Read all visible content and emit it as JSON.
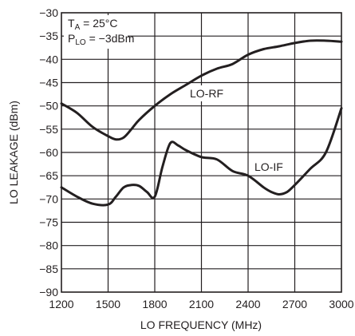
{
  "chart_data": {
    "type": "line",
    "xlabel": "LO FREQUENCY (MHz)",
    "ylabel": "LO LEAKAGE (dBm)",
    "xlim": [
      1200,
      3000
    ],
    "ylim": [
      -90,
      -30
    ],
    "x_ticks": [
      "1200",
      "1500",
      "1800",
      "2100",
      "2400",
      "2700",
      "3000"
    ],
    "y_ticks": [
      "−30",
      "−35",
      "−40",
      "−45",
      "−50",
      "−55",
      "−60",
      "−65",
      "−70",
      "−75",
      "−80",
      "−85",
      "−90"
    ],
    "grid": true,
    "annotations": {
      "ta_main": "T",
      "ta_sub": "A",
      "ta_rest": " = 25°C",
      "plo_main": "P",
      "plo_sub": "LO",
      "plo_rest": " = −3dBm"
    },
    "series": [
      {
        "name": "LO-RF",
        "x": [
          1200,
          1300,
          1400,
          1500,
          1550,
          1600,
          1650,
          1700,
          1800,
          1900,
          2000,
          2100,
          2200,
          2300,
          2400,
          2500,
          2600,
          2700,
          2800,
          2900,
          3000
        ],
        "y": [
          -49.5,
          -51.5,
          -54.5,
          -56.5,
          -57.2,
          -56.8,
          -55.0,
          -53.0,
          -50.0,
          -47.5,
          -45.5,
          -43.5,
          -42.0,
          -41.0,
          -39.0,
          -37.8,
          -37.2,
          -36.5,
          -36.0,
          -36.0,
          -36.2
        ]
      },
      {
        "name": "LO-IF",
        "x": [
          1200,
          1300,
          1400,
          1500,
          1550,
          1600,
          1650,
          1700,
          1750,
          1800,
          1850,
          1900,
          1950,
          2000,
          2100,
          2200,
          2300,
          2400,
          2500,
          2550,
          2600,
          2650,
          2700,
          2800,
          2900,
          3000
        ],
        "y": [
          -67.5,
          -69.5,
          -71.0,
          -71.2,
          -69.5,
          -67.5,
          -67.0,
          -67.2,
          -68.5,
          -69.5,
          -63.0,
          -58.0,
          -58.5,
          -59.5,
          -61.0,
          -61.5,
          -64.0,
          -65.0,
          -67.5,
          -68.5,
          -69.0,
          -68.5,
          -67.0,
          -63.5,
          -60.0,
          -50.5
        ]
      }
    ]
  }
}
